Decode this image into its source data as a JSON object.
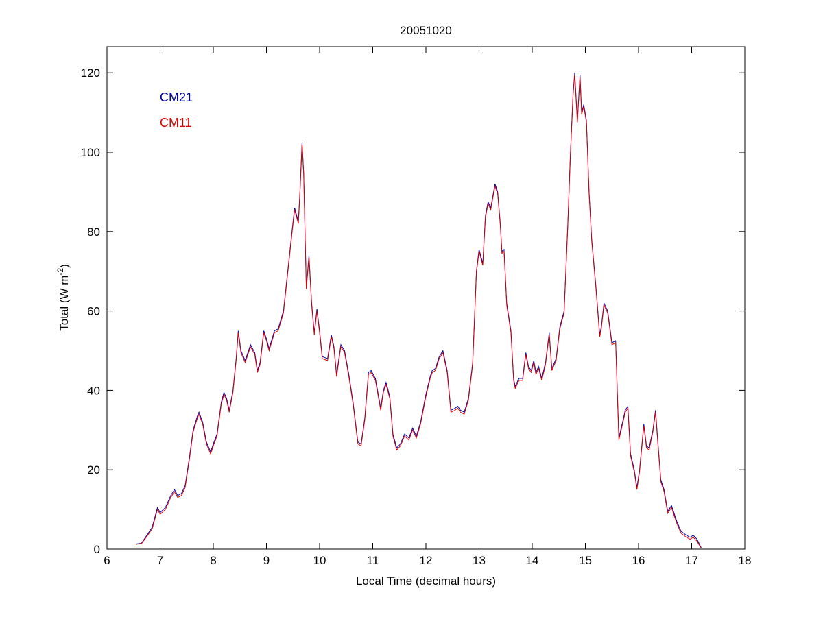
{
  "chart_data": {
    "type": "line",
    "title": "20051020",
    "x_label": "Local Time (decimal hours)",
    "y_label": {
      "text": "Total (W m",
      "superscript": "-2",
      "suffix": ")"
    },
    "xlim": [
      6,
      18
    ],
    "xticks": [
      6,
      7,
      8,
      9,
      10,
      11,
      12,
      13,
      14,
      15,
      16,
      17,
      18
    ],
    "ylim": [
      0,
      126.6
    ],
    "yticks": [
      0,
      20,
      40,
      60,
      80,
      100,
      120
    ],
    "legend": "upper left",
    "grid": false,
    "x": [
      6.55,
      6.65,
      6.75,
      6.85,
      6.95,
      7.0,
      7.1,
      7.2,
      7.27,
      7.33,
      7.4,
      7.47,
      7.55,
      7.62,
      7.7,
      7.73,
      7.8,
      7.87,
      7.95,
      8.0,
      8.07,
      8.15,
      8.2,
      8.25,
      8.3,
      8.37,
      8.43,
      8.47,
      8.52,
      8.6,
      8.7,
      8.78,
      8.83,
      8.88,
      8.95,
      9.0,
      9.05,
      9.15,
      9.22,
      9.32,
      9.4,
      9.48,
      9.53,
      9.6,
      9.63,
      9.67,
      9.7,
      9.75,
      9.8,
      9.85,
      9.9,
      9.95,
      10.0,
      10.05,
      10.15,
      10.22,
      10.27,
      10.32,
      10.4,
      10.47,
      10.55,
      10.63,
      10.72,
      10.78,
      10.85,
      10.92,
      10.97,
      11.05,
      11.15,
      11.2,
      11.25,
      11.32,
      11.38,
      11.45,
      11.52,
      11.6,
      11.68,
      11.75,
      11.82,
      11.9,
      12.0,
      12.08,
      12.12,
      12.18,
      12.25,
      12.32,
      12.4,
      12.47,
      12.55,
      12.6,
      12.65,
      12.72,
      12.8,
      12.88,
      12.95,
      13.0,
      13.07,
      13.12,
      13.17,
      13.22,
      13.3,
      13.35,
      13.4,
      13.43,
      13.47,
      13.52,
      13.6,
      13.65,
      13.68,
      13.75,
      13.82,
      13.88,
      13.93,
      13.98,
      14.03,
      14.07,
      14.12,
      14.18,
      14.25,
      14.32,
      14.37,
      14.45,
      14.52,
      14.6,
      14.67,
      14.72,
      14.77,
      14.8,
      14.85,
      14.9,
      14.93,
      14.97,
      15.02,
      15.07,
      15.12,
      15.2,
      15.27,
      15.3,
      15.35,
      15.42,
      15.5,
      15.57,
      15.63,
      15.7,
      15.75,
      15.8,
      15.85,
      15.92,
      15.97,
      16.02,
      16.1,
      16.15,
      16.2,
      16.27,
      16.32,
      16.37,
      16.42,
      16.48,
      16.55,
      16.62,
      16.72,
      16.8,
      16.9,
      16.97,
      17.03,
      17.1,
      17.18
    ],
    "series": [
      {
        "name": "CM21",
        "color": "#0000aa",
        "values": [
          1.3,
          1.5,
          3.5,
          5.5,
          10.5,
          9.2,
          10.5,
          13.5,
          15,
          13.5,
          14,
          16,
          23,
          30,
          33.5,
          34.5,
          32,
          27,
          24.5,
          26.5,
          29,
          37,
          39.5,
          38,
          35,
          40,
          48,
          55,
          50,
          47.5,
          51.5,
          49.5,
          45,
          47,
          55,
          53,
          50.5,
          55,
          55.5,
          60,
          70,
          80,
          86,
          82.5,
          90,
          102.5,
          95,
          66,
          74,
          62,
          54.5,
          60.5,
          55,
          48.5,
          48,
          54,
          51,
          44,
          51.5,
          50,
          44,
          37,
          27,
          26.5,
          33,
          44.5,
          45,
          43,
          35.5,
          40,
          42,
          38.5,
          29,
          25.5,
          26.5,
          29,
          28,
          30.5,
          28.5,
          32,
          39,
          43.5,
          45,
          45.5,
          48.5,
          50,
          45,
          35,
          35.5,
          36,
          35,
          34.5,
          38,
          47,
          70,
          75.5,
          72,
          84,
          87.5,
          86,
          92,
          90,
          82,
          75,
          75.5,
          62,
          55,
          43,
          41,
          43,
          43,
          49.5,
          46,
          45,
          47.5,
          44.5,
          46,
          43,
          47,
          54.5,
          45.5,
          48,
          56,
          60,
          82,
          100,
          115,
          120,
          108,
          119.5,
          110,
          112,
          108,
          90,
          78,
          66,
          54,
          56,
          62,
          60,
          52,
          52.5,
          28,
          32,
          35,
          36,
          24,
          20,
          15.5,
          20,
          31.5,
          26,
          25.5,
          30,
          35,
          26,
          17.5,
          15,
          9.5,
          11,
          7,
          4.5,
          3.5,
          3,
          3.5,
          2.5,
          0.3
        ]
      },
      {
        "name": "CM11",
        "color": "#dd0000",
        "values": [
          1.2,
          1.4,
          3.2,
          5.1,
          10,
          8.8,
          10,
          13,
          14.5,
          13,
          13.5,
          15.5,
          22.5,
          29.5,
          33,
          34,
          31.5,
          26.5,
          24,
          26,
          28.5,
          36.5,
          39,
          37.5,
          34.5,
          39.5,
          47.5,
          54.5,
          49.5,
          47,
          51,
          49,
          44.5,
          46.5,
          54.5,
          52.5,
          50,
          54.5,
          55,
          59.5,
          69.5,
          79.5,
          85.5,
          82,
          89.5,
          102,
          94.5,
          65.5,
          73.5,
          61.5,
          54,
          60,
          54.5,
          48,
          47.5,
          53.5,
          50.5,
          43.5,
          51,
          49.5,
          43.5,
          36.5,
          26.5,
          26,
          32.5,
          44,
          44.5,
          42.5,
          35,
          39.5,
          41.5,
          38,
          28.5,
          25,
          26,
          28.5,
          27.5,
          30,
          28,
          31.5,
          38.5,
          43,
          44.5,
          45,
          48,
          49.5,
          44.5,
          34.5,
          35,
          35.5,
          34.5,
          34,
          37.5,
          46.5,
          69.5,
          75,
          71.5,
          83.5,
          87,
          85.5,
          91.5,
          89.5,
          81.5,
          74.5,
          75,
          61.5,
          54.5,
          42.5,
          40.5,
          42.5,
          42.5,
          49,
          45.5,
          44.5,
          47,
          44,
          45.5,
          42.5,
          46.5,
          54,
          45,
          47.5,
          55.5,
          59.5,
          81.5,
          99.5,
          114.5,
          119.5,
          107.5,
          119,
          109.5,
          111.5,
          107.5,
          89.5,
          77.5,
          65.5,
          53.5,
          55.5,
          61.5,
          59.5,
          51.5,
          52,
          27.5,
          31.5,
          34.5,
          35.5,
          23.5,
          19.5,
          15,
          19.5,
          31,
          25.5,
          25,
          29.5,
          34.5,
          25.5,
          17,
          14.5,
          9,
          10.5,
          6.5,
          4,
          3,
          2.5,
          3,
          2,
          0.2
        ]
      }
    ]
  }
}
